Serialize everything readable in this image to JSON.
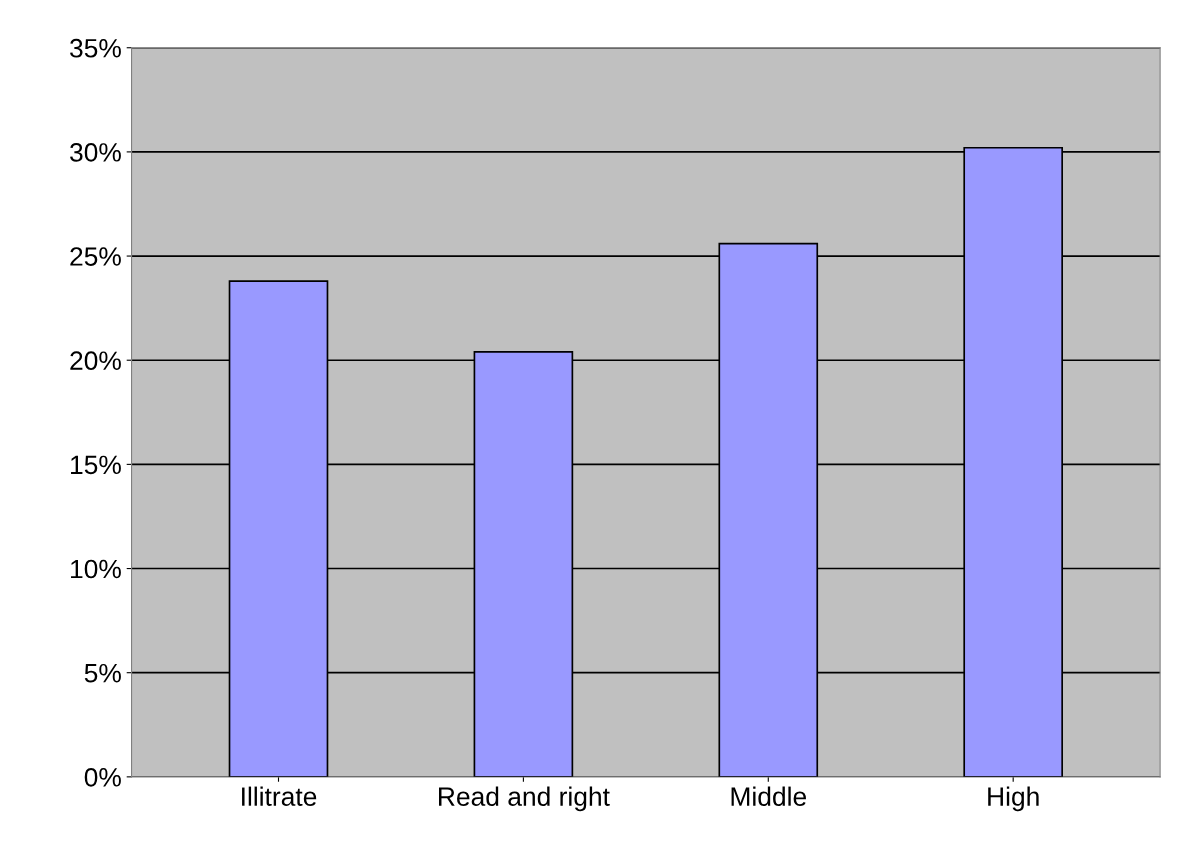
{
  "chart_data": {
    "type": "bar",
    "categories": [
      "Illitrate",
      "Read and right",
      "Middle",
      "High"
    ],
    "values": [
      23.8,
      20.4,
      25.6,
      30.2
    ],
    "color": "#9999ff",
    "ylim": [
      0,
      35
    ],
    "yticks": [
      {
        "value": 0,
        "label": "0%"
      },
      {
        "value": 5,
        "label": "5%"
      },
      {
        "value": 10,
        "label": "10%"
      },
      {
        "value": 15,
        "label": "15%"
      },
      {
        "value": 20,
        "label": "20%"
      },
      {
        "value": 25,
        "label": "25%"
      },
      {
        "value": 30,
        "label": "30%"
      },
      {
        "value": 35,
        "label": "35%"
      }
    ],
    "grid": "y",
    "legend": false
  }
}
